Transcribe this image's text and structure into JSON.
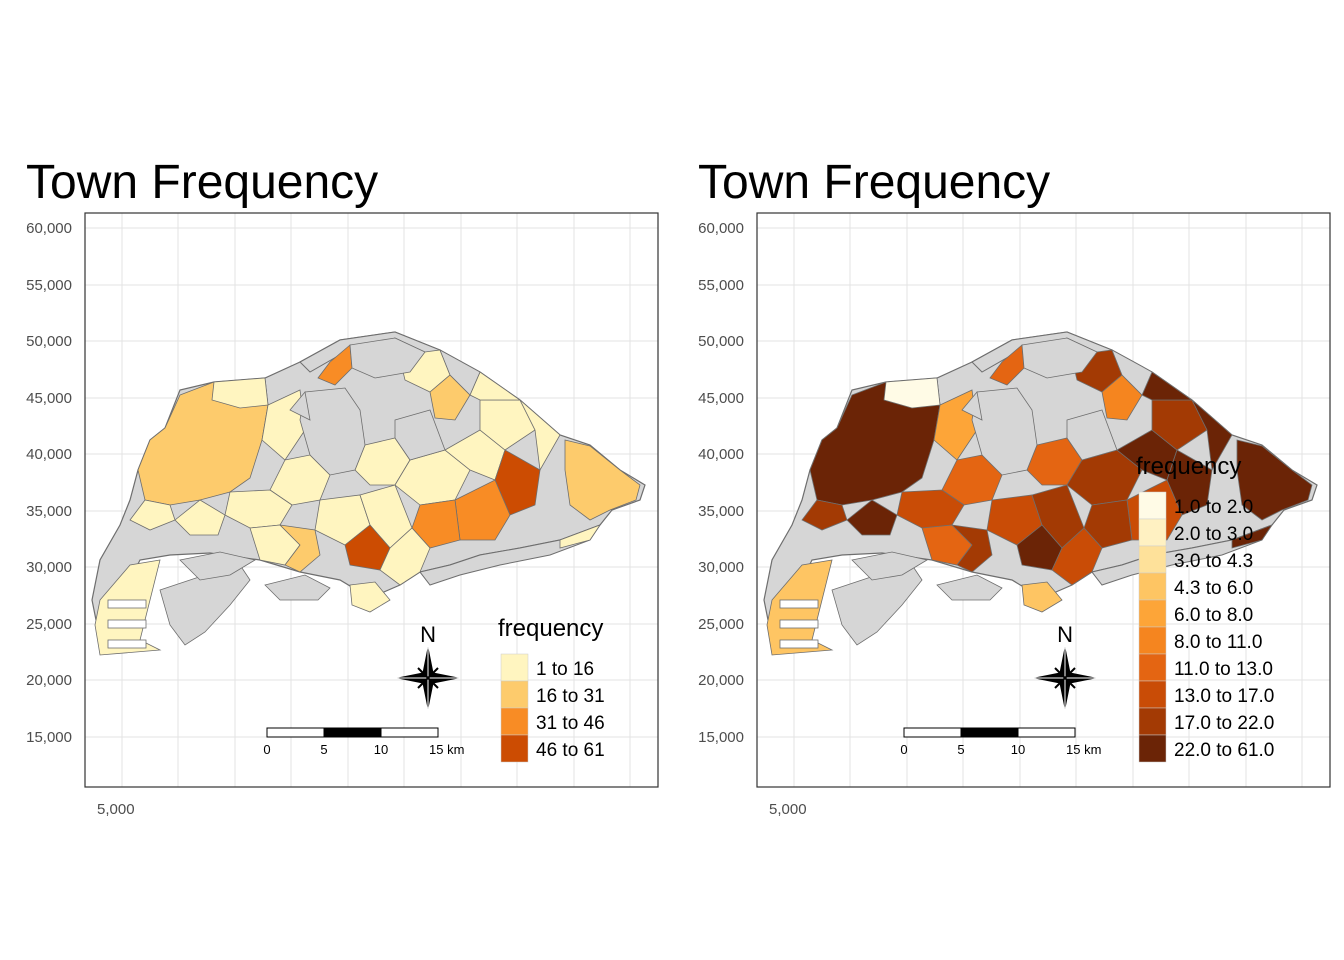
{
  "colors": {
    "missing": "#d6d6d6",
    "border": "#6e6e6e",
    "grid": "#e3e3e3",
    "frame": "#333333"
  },
  "axes": {
    "y_ticks": [
      "60,000",
      "55,000",
      "50,000",
      "45,000",
      "40,000",
      "35,000",
      "30,000",
      "25,000",
      "20,000",
      "15,000"
    ],
    "x_ticks": [
      "5,000"
    ]
  },
  "scale_bar": {
    "labels": [
      "0",
      "5",
      "10",
      "15 km"
    ]
  },
  "north_arrow": {
    "label": "N",
    "icon": "compass-rose-icon"
  },
  "panels": [
    {
      "title": "Town Frequency",
      "legend": {
        "title": "frequency",
        "entries": [
          {
            "label": "1 to 16",
            "color": "#fff5c0"
          },
          {
            "label": "16 to 31",
            "color": "#fdcb6c"
          },
          {
            "label": "31 to 46",
            "color": "#f88c25"
          },
          {
            "label": "46 to 61",
            "color": "#cc4c02"
          }
        ]
      }
    },
    {
      "title": "Town Frequency",
      "legend": {
        "title": "frequency",
        "entries": [
          {
            "label": "1.0 to 2.0",
            "color": "#fffbe6"
          },
          {
            "label": "2.0 to 3.0",
            "color": "#fff1c2"
          },
          {
            "label": "3.0 to 4.3",
            "color": "#fee19a"
          },
          {
            "label": "4.3 to 6.0",
            "color": "#fec563"
          },
          {
            "label": "6.0 to 8.0",
            "color": "#fda538"
          },
          {
            "label": "8.0 to 11.0",
            "color": "#f5851f"
          },
          {
            "label": "11.0 to 13.0",
            "color": "#e46512"
          },
          {
            "label": "13.0 to 17.0",
            "color": "#c94c06"
          },
          {
            "label": "17.0 to 22.0",
            "color": "#a33a04"
          },
          {
            "label": "22.0 to 61.0",
            "color": "#6b2406"
          }
        ]
      }
    }
  ]
}
